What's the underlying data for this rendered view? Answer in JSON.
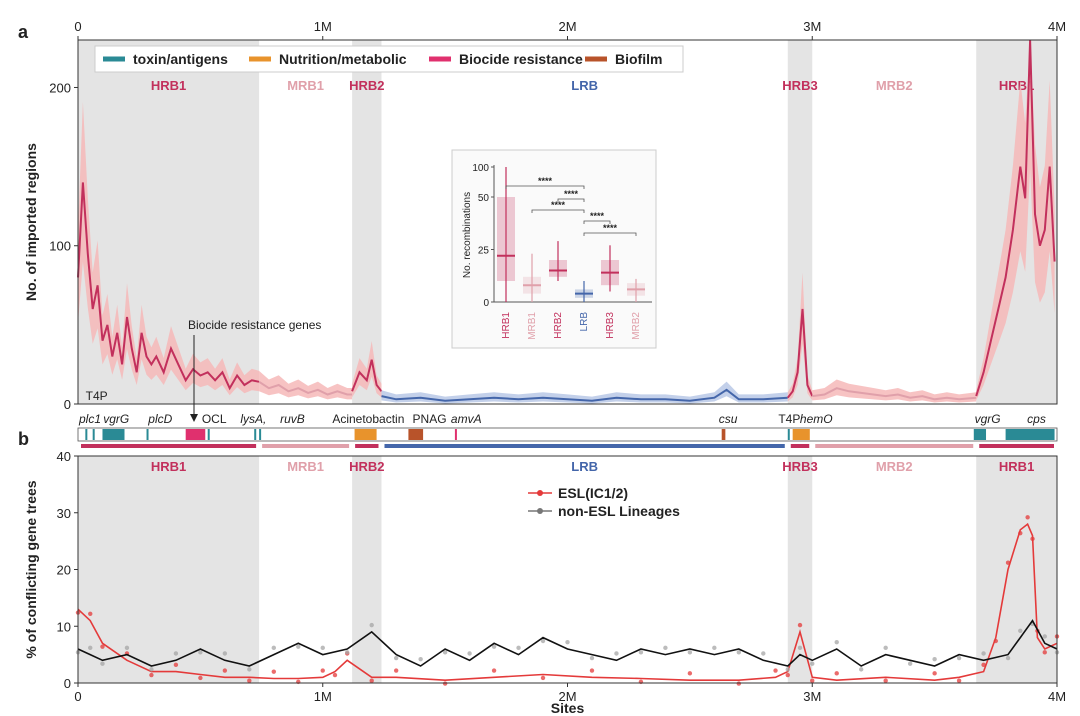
{
  "panel_labels": {
    "a": "a",
    "b": "b"
  },
  "colors": {
    "hrb": "#c2305c",
    "mrb": "#e0a0aa",
    "lrb": "#4466aa",
    "band": "#e4e4e4",
    "toxin": "#2a8a95",
    "nutrition": "#e8932c",
    "biocide": "#e0306e",
    "biofilm": "#b8532a",
    "esl": "#e43a3a",
    "nonesl": "#111111",
    "dot_gray": "#a5a5a5"
  },
  "legend": [
    {
      "label": "toxin/antigens",
      "color": "#2a8a95"
    },
    {
      "label": "Nutrition/metabolic",
      "color": "#e8932c"
    },
    {
      "label": "Biocide resistance",
      "color": "#e0306e"
    },
    {
      "label": "Biofilm",
      "color": "#b8532a"
    }
  ],
  "regions": [
    {
      "label": "HRB1",
      "start": 0,
      "end": 0.74,
      "kind": "hrb"
    },
    {
      "label": "MRB1",
      "start": 0.74,
      "end": 1.12,
      "kind": "mrb"
    },
    {
      "label": "HRB2",
      "start": 1.12,
      "end": 1.24,
      "kind": "hrb"
    },
    {
      "label": "LRB",
      "start": 1.24,
      "end": 2.9,
      "kind": "lrb"
    },
    {
      "label": "HRB3",
      "start": 2.9,
      "end": 3.0,
      "kind": "hrb"
    },
    {
      "label": "MRB2",
      "start": 3.0,
      "end": 3.67,
      "kind": "mrb"
    },
    {
      "label": "HRB1",
      "start": 3.67,
      "end": 4.0,
      "kind": "hrb"
    }
  ],
  "annotation_text": "Biocide resistance genes",
  "genes": [
    {
      "label": "T4P",
      "italic": false,
      "pos": 0.06
    },
    {
      "label": "plc1",
      "italic": true,
      "pos": 0.0
    },
    {
      "label": "vgrG",
      "italic": true,
      "pos": 0.14
    },
    {
      "label": "plcD",
      "italic": true,
      "pos": 0.32
    },
    {
      "label": "OCL",
      "italic": false,
      "pos": 0.54
    },
    {
      "label": "lysA,",
      "italic": true,
      "pos": 0.7
    },
    {
      "label": "ruvB",
      "italic": true,
      "pos": 0.86
    },
    {
      "label": "Acinetobactin",
      "italic": false,
      "pos": 1.17
    },
    {
      "label": "PNAG",
      "italic": false,
      "pos": 1.42
    },
    {
      "label": "amvA",
      "italic": true,
      "pos": 1.57
    },
    {
      "label": "csu",
      "italic": true,
      "pos": 2.64
    },
    {
      "label": "T4P",
      "italic": false,
      "pos": 2.89
    },
    {
      "label": "hemO",
      "italic": true,
      "pos": 3.0
    },
    {
      "label": "vgrG",
      "italic": true,
      "pos": 3.7
    },
    {
      "label": "cps",
      "italic": true,
      "pos": 3.9
    }
  ],
  "gene_blocks": [
    {
      "start": 0.03,
      "end": 0.035,
      "cat": "toxin"
    },
    {
      "start": 0.06,
      "end": 0.065,
      "cat": "toxin"
    },
    {
      "start": 0.1,
      "end": 0.19,
      "cat": "toxin"
    },
    {
      "start": 0.28,
      "end": 0.285,
      "cat": "toxin"
    },
    {
      "start": 0.44,
      "end": 0.52,
      "cat": "biocide"
    },
    {
      "start": 0.53,
      "end": 0.535,
      "cat": "toxin"
    },
    {
      "start": 0.72,
      "end": 0.725,
      "cat": "toxin"
    },
    {
      "start": 0.74,
      "end": 0.745,
      "cat": "toxin"
    },
    {
      "start": 1.13,
      "end": 1.22,
      "cat": "nutrition"
    },
    {
      "start": 1.35,
      "end": 1.41,
      "cat": "biofilm"
    },
    {
      "start": 1.54,
      "end": 1.545,
      "cat": "biocide"
    },
    {
      "start": 2.63,
      "end": 2.645,
      "cat": "biofilm"
    },
    {
      "start": 2.9,
      "end": 2.905,
      "cat": "toxin"
    },
    {
      "start": 2.92,
      "end": 2.99,
      "cat": "nutrition"
    },
    {
      "start": 3.66,
      "end": 3.71,
      "cat": "toxin"
    },
    {
      "start": 3.79,
      "end": 3.99,
      "cat": "toxin"
    }
  ],
  "chart_data": [
    {
      "id": "a",
      "type": "line",
      "title": "",
      "xlabel": "",
      "ylabel": "No. of imported regions",
      "x_unit": "Mb",
      "xlim": [
        0,
        4
      ],
      "ylim": [
        0,
        230
      ],
      "x_ticks": [
        0,
        1,
        2,
        3,
        4
      ],
      "x_tick_labels": [
        "0",
        "1M",
        "2M",
        "3M",
        "4M"
      ],
      "y_ticks": [
        0,
        100,
        200
      ],
      "y_tick_labels": [
        "0",
        "100",
        "200"
      ],
      "series": [
        {
          "name": "HRB1",
          "kind": "hrb",
          "x": [
            0,
            0.02,
            0.04,
            0.06,
            0.08,
            0.1,
            0.12,
            0.14,
            0.16,
            0.18,
            0.2,
            0.22,
            0.24,
            0.26,
            0.28,
            0.3,
            0.32,
            0.35,
            0.38,
            0.41,
            0.44,
            0.47,
            0.5,
            0.53,
            0.56,
            0.59,
            0.62,
            0.65,
            0.68,
            0.71,
            0.74
          ],
          "y": [
            80,
            140,
            95,
            60,
            75,
            40,
            50,
            30,
            45,
            25,
            55,
            35,
            20,
            45,
            30,
            25,
            30,
            20,
            35,
            25,
            15,
            22,
            18,
            20,
            15,
            20,
            10,
            18,
            12,
            15,
            14
          ]
        },
        {
          "name": "MRB1",
          "kind": "mrb",
          "x": [
            0.74,
            0.78,
            0.82,
            0.86,
            0.9,
            0.94,
            0.98,
            1.02,
            1.06,
            1.1,
            1.12
          ],
          "y": [
            14,
            10,
            12,
            8,
            10,
            7,
            9,
            6,
            8,
            6,
            6
          ]
        },
        {
          "name": "HRB2",
          "kind": "hrb",
          "x": [
            1.12,
            1.15,
            1.18,
            1.2,
            1.22,
            1.24
          ],
          "y": [
            8,
            20,
            15,
            28,
            12,
            8
          ]
        },
        {
          "name": "LRB",
          "kind": "lrb",
          "x": [
            1.24,
            1.3,
            1.4,
            1.5,
            1.6,
            1.7,
            1.8,
            1.9,
            2,
            2.1,
            2.2,
            2.3,
            2.4,
            2.5,
            2.6,
            2.65,
            2.7,
            2.8,
            2.9
          ],
          "y": [
            5,
            3,
            4,
            2,
            3,
            4,
            3,
            4,
            3,
            2,
            4,
            3,
            3,
            2,
            4,
            9,
            3,
            3,
            4
          ]
        },
        {
          "name": "HRB3",
          "kind": "hrb",
          "x": [
            2.9,
            2.92,
            2.94,
            2.96,
            2.98,
            3.0
          ],
          "y": [
            4,
            8,
            20,
            60,
            12,
            5
          ]
        },
        {
          "name": "MRB2",
          "kind": "mrb",
          "x": [
            3.0,
            3.05,
            3.1,
            3.15,
            3.2,
            3.25,
            3.3,
            3.35,
            3.4,
            3.45,
            3.5,
            3.55,
            3.6,
            3.67
          ],
          "y": [
            5,
            6,
            10,
            8,
            7,
            6,
            5,
            6,
            4,
            5,
            3,
            4,
            3,
            4
          ]
        },
        {
          "name": "HRB1",
          "kind": "hrb",
          "x": [
            3.67,
            3.7,
            3.73,
            3.76,
            3.79,
            3.82,
            3.85,
            3.87,
            3.89,
            3.91,
            3.93,
            3.95,
            3.97,
            3.99
          ],
          "y": [
            5,
            20,
            40,
            60,
            80,
            110,
            150,
            130,
            230,
            120,
            100,
            110,
            150,
            90
          ]
        }
      ]
    },
    {
      "id": "a-inset",
      "type": "box",
      "ylabel": "No. recombinations",
      "y_ticks": [
        0,
        25,
        50,
        100
      ],
      "categories": [
        "HRB1",
        "MRB1",
        "HRB2",
        "LRB",
        "HRB3",
        "MRB2"
      ],
      "boxes": [
        {
          "name": "HRB1",
          "min": 0,
          "q1": 10,
          "median": 22,
          "q3": 50,
          "max": 100,
          "kind": "hrb"
        },
        {
          "name": "MRB1",
          "min": 0,
          "q1": 4,
          "median": 8,
          "q3": 12,
          "max": 23,
          "kind": "mrb"
        },
        {
          "name": "HRB2",
          "min": 10,
          "q1": 12,
          "median": 15,
          "q3": 20,
          "max": 29,
          "kind": "hrb"
        },
        {
          "name": "LRB",
          "min": 0,
          "q1": 2,
          "median": 4,
          "q3": 6,
          "max": 10,
          "kind": "lrb"
        },
        {
          "name": "HRB3",
          "min": 5,
          "q1": 8,
          "median": 14,
          "q3": 20,
          "max": 27,
          "kind": "hrb"
        },
        {
          "name": "MRB2",
          "min": 0,
          "q1": 3,
          "median": 6,
          "q3": 9,
          "max": 11,
          "kind": "mrb"
        }
      ],
      "significance": [
        {
          "from": "HRB1",
          "to": "LRB",
          "label": "****"
        },
        {
          "from": "MRB1",
          "to": "LRB",
          "label": "****"
        },
        {
          "from": "HRB2",
          "to": "LRB",
          "label": "****"
        },
        {
          "from": "LRB",
          "to": "HRB3",
          "label": "****"
        },
        {
          "from": "LRB",
          "to": "MRB2",
          "label": "****"
        }
      ]
    },
    {
      "id": "b",
      "type": "scatter",
      "xlabel": "Sites",
      "ylabel": "% of conflicting gene trees",
      "xlim": [
        0,
        4
      ],
      "ylim": [
        0,
        40
      ],
      "x_ticks": [
        0,
        1,
        2,
        3,
        4
      ],
      "x_tick_labels": [
        "0",
        "1M",
        "2M",
        "3M",
        "4M"
      ],
      "y_ticks": [
        0,
        10,
        20,
        30,
        40
      ],
      "y_tick_labels": [
        "0",
        "10",
        "20",
        "30",
        "40"
      ],
      "legend": [
        "ESL(IC1/2)",
        "non-ESL Lineages"
      ],
      "series": [
        {
          "name": "ESL(IC1/2)",
          "x": [
            0,
            0.05,
            0.1,
            0.2,
            0.3,
            0.4,
            0.5,
            0.6,
            0.7,
            0.8,
            0.9,
            1.0,
            1.05,
            1.1,
            1.2,
            1.3,
            1.5,
            1.7,
            1.9,
            2.1,
            2.3,
            2.5,
            2.7,
            2.85,
            2.9,
            2.95,
            3.0,
            3.1,
            3.3,
            3.5,
            3.6,
            3.7,
            3.75,
            3.8,
            3.85,
            3.88,
            3.9,
            3.92,
            3.95,
            4.0
          ],
          "y": [
            13,
            11,
            7,
            4,
            2,
            2,
            1.5,
            1,
            1,
            0.8,
            0.8,
            1,
            2,
            4,
            1,
            1,
            0.5,
            1,
            1.5,
            1,
            0.8,
            0.5,
            0.5,
            1,
            2,
            9,
            1,
            0.5,
            1,
            0.5,
            1,
            2,
            8,
            20,
            27,
            28,
            26,
            8,
            6,
            7
          ]
        },
        {
          "name": "non-ESL Lineages",
          "x": [
            0,
            0.05,
            0.1,
            0.2,
            0.3,
            0.4,
            0.5,
            0.6,
            0.7,
            0.8,
            0.9,
            1.0,
            1.1,
            1.2,
            1.3,
            1.4,
            1.5,
            1.6,
            1.7,
            1.8,
            1.9,
            2.0,
            2.1,
            2.2,
            2.3,
            2.4,
            2.5,
            2.6,
            2.7,
            2.8,
            2.9,
            2.95,
            3.0,
            3.1,
            3.2,
            3.3,
            3.4,
            3.5,
            3.6,
            3.7,
            3.8,
            3.85,
            3.9,
            3.95,
            4.0
          ],
          "y": [
            6,
            5,
            4,
            5,
            3,
            4,
            6,
            4,
            3,
            5,
            7,
            5,
            6,
            9,
            5,
            3,
            6,
            4,
            7,
            5,
            8,
            6,
            5,
            4,
            6,
            5,
            6,
            5,
            6,
            4,
            3,
            5,
            4,
            6,
            3,
            5,
            4,
            3,
            5,
            4,
            5,
            8,
            11,
            7,
            6
          ]
        }
      ]
    }
  ]
}
